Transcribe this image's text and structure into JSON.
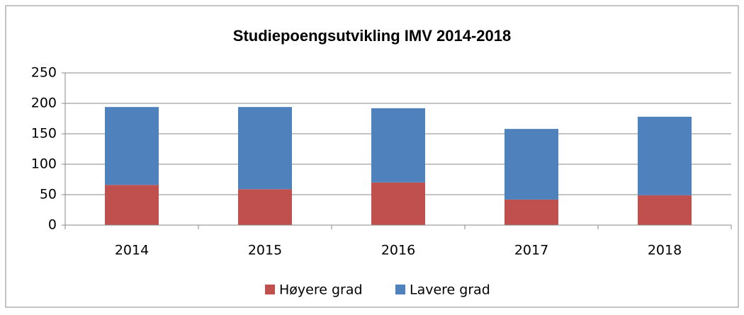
{
  "chart_data": {
    "type": "stacked_bar",
    "title": "Studiepoengsutvikling IMV 2014-2018",
    "categories": [
      "2014",
      "2015",
      "2016",
      "2017",
      "2018"
    ],
    "series": [
      {
        "name": "Høyere grad",
        "color": "#c0504d",
        "values": [
          66,
          59,
          70,
          42,
          49
        ]
      },
      {
        "name": "Lavere grad",
        "color": "#4f81bd",
        "values": [
          128,
          135,
          122,
          116,
          129
        ]
      }
    ],
    "ylim": [
      0,
      250
    ],
    "yticks": [
      0,
      50,
      100,
      150,
      200,
      250
    ],
    "grid": true,
    "legend": "bottom"
  }
}
